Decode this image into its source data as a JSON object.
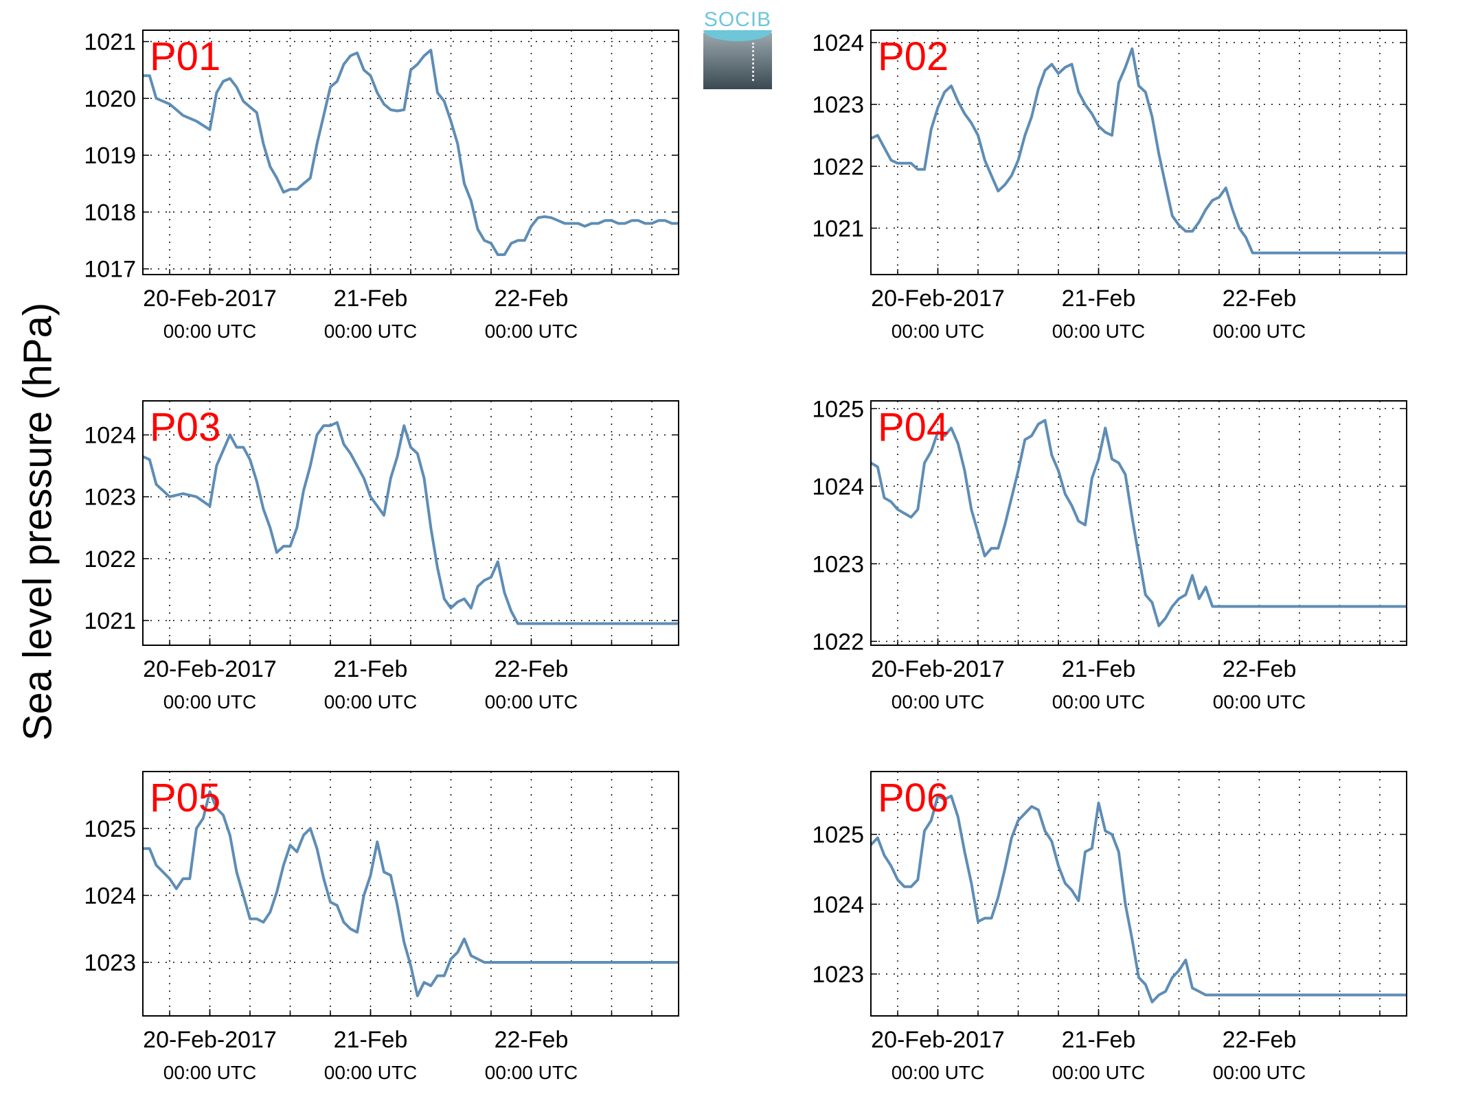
{
  "figure": {
    "ylabel": "Sea level pressure (hPa)",
    "logo_text": "SOCIB",
    "line_color": "#5e8db5",
    "label_color": "#ff0000"
  },
  "chart_data": [
    {
      "type": "line",
      "panel_label": "P01",
      "x_unit": "hours since 20-Feb-2017 00:00 UTC",
      "xlim": [
        -10,
        70
      ],
      "ylim": [
        1016.9,
        1021.2
      ],
      "xticks": [
        {
          "at": 0,
          "label": "20-Feb-2017",
          "sub": "00:00 UTC"
        },
        {
          "at": 24,
          "label": "21-Feb",
          "sub": "00:00 UTC"
        },
        {
          "at": 48,
          "label": "22-Feb",
          "sub": "00:00 UTC"
        }
      ],
      "yticks": [
        1017,
        1018,
        1019,
        1020,
        1021
      ],
      "grid": true,
      "x": [
        -10,
        -9,
        -8,
        -6,
        -4,
        -2,
        0,
        1,
        2,
        3,
        4,
        5,
        6,
        7,
        8,
        9,
        10,
        11,
        12,
        13,
        14,
        15,
        16,
        17,
        18,
        19,
        20,
        21,
        22,
        23,
        24,
        25,
        26,
        27,
        28,
        29,
        30,
        31,
        32,
        33,
        34,
        35,
        36,
        37,
        38,
        39,
        40,
        41,
        42,
        43,
        44,
        45,
        46,
        47,
        48,
        49,
        50,
        51,
        52,
        53,
        54,
        55,
        56,
        57,
        58,
        59,
        60,
        61,
        62,
        63,
        64,
        65,
        66,
        67,
        68,
        69,
        70
      ],
      "y": [
        1020.4,
        1020.4,
        1020.0,
        1019.9,
        1019.7,
        1019.6,
        1019.45,
        1020.1,
        1020.3,
        1020.35,
        1020.2,
        1019.95,
        1019.85,
        1019.75,
        1019.2,
        1018.8,
        1018.6,
        1018.35,
        1018.4,
        1018.4,
        1018.5,
        1018.6,
        1019.2,
        1019.7,
        1020.2,
        1020.3,
        1020.6,
        1020.75,
        1020.8,
        1020.5,
        1020.4,
        1020.1,
        1019.9,
        1019.8,
        1019.78,
        1019.8,
        1020.5,
        1020.6,
        1020.75,
        1020.85,
        1020.1,
        1019.95,
        1019.6,
        1019.2,
        1018.5,
        1018.2,
        1017.7,
        1017.5,
        1017.45,
        1017.25,
        1017.25,
        1017.45,
        1017.5,
        1017.5,
        1017.75,
        1017.9,
        1017.92,
        1017.9,
        1017.85,
        1017.8,
        1017.8,
        1017.8,
        1017.75,
        1017.8,
        1017.8,
        1017.85,
        1017.85,
        1017.8,
        1017.8,
        1017.85,
        1017.85,
        1017.8,
        1017.8,
        1017.85,
        1017.85,
        1017.8,
        1017.8
      ]
    },
    {
      "type": "line",
      "panel_label": "P02",
      "x_unit": "hours since 20-Feb-2017 00:00 UTC",
      "xlim": [
        -10,
        70
      ],
      "ylim": [
        1020.25,
        1024.2
      ],
      "xticks": [
        {
          "at": 0,
          "label": "20-Feb-2017",
          "sub": "00:00 UTC"
        },
        {
          "at": 24,
          "label": "21-Feb",
          "sub": "00:00 UTC"
        },
        {
          "at": 48,
          "label": "22-Feb",
          "sub": "00:00 UTC"
        }
      ],
      "yticks": [
        1021,
        1022,
        1023,
        1024
      ],
      "grid": true,
      "x": [
        -10,
        -9,
        -8,
        -7,
        -6,
        -5,
        -4,
        -3,
        -2,
        -1,
        0,
        1,
        2,
        3,
        4,
        5,
        6,
        7,
        8,
        9,
        10,
        11,
        12,
        13,
        14,
        15,
        16,
        17,
        18,
        19,
        20,
        21,
        22,
        23,
        24,
        25,
        26,
        27,
        28,
        29,
        30,
        31,
        32,
        33,
        34,
        35,
        36,
        37,
        38,
        39,
        40,
        41,
        42,
        43,
        44,
        45,
        46,
        47,
        48,
        49,
        50,
        51,
        52,
        53,
        54,
        55,
        56,
        57,
        58,
        59,
        60,
        61,
        62,
        63,
        64,
        65,
        66,
        67,
        68,
        69,
        70
      ],
      "y": [
        1022.45,
        1022.5,
        1022.3,
        1022.1,
        1022.05,
        1022.05,
        1022.05,
        1021.95,
        1021.95,
        1022.6,
        1022.95,
        1023.2,
        1023.3,
        1023.05,
        1022.85,
        1022.7,
        1022.5,
        1022.1,
        1021.85,
        1021.6,
        1021.7,
        1021.85,
        1022.1,
        1022.5,
        1022.8,
        1023.25,
        1023.55,
        1023.65,
        1023.5,
        1023.6,
        1023.65,
        1023.2,
        1023.0,
        1022.85,
        1022.65,
        1022.55,
        1022.5,
        1023.35,
        1023.6,
        1023.9,
        1023.3,
        1023.2,
        1022.8,
        1022.2,
        1021.7,
        1021.2,
        1021.05,
        1020.95,
        1020.95,
        1021.1,
        1021.3,
        1021.45,
        1021.5,
        1021.65,
        1021.3,
        1021.0,
        1020.85,
        1020.6,
        1020.6,
        1020.6,
        1020.6,
        1020.6,
        1020.6,
        1020.6,
        1020.6,
        1020.6,
        1020.6,
        1020.6,
        1020.6,
        1020.6,
        1020.6,
        1020.6,
        1020.6,
        1020.6,
        1020.6,
        1020.6,
        1020.6,
        1020.6,
        1020.6,
        1020.6,
        1020.6
      ]
    },
    {
      "type": "line",
      "panel_label": "P03",
      "x_unit": "hours since 20-Feb-2017 00:00 UTC",
      "xlim": [
        -10,
        70
      ],
      "ylim": [
        1020.6,
        1024.55
      ],
      "xticks": [
        {
          "at": 0,
          "label": "20-Feb-2017",
          "sub": "00:00 UTC"
        },
        {
          "at": 24,
          "label": "21-Feb",
          "sub": "00:00 UTC"
        },
        {
          "at": 48,
          "label": "22-Feb",
          "sub": "00:00 UTC"
        }
      ],
      "yticks": [
        1021,
        1022,
        1023,
        1024
      ],
      "grid": true,
      "x": [
        -10,
        -9,
        -8,
        -6,
        -4,
        -2,
        0,
        1,
        2,
        3,
        4,
        5,
        6,
        7,
        8,
        9,
        10,
        11,
        12,
        13,
        14,
        15,
        16,
        17,
        18,
        19,
        20,
        21,
        22,
        23,
        24,
        25,
        26,
        27,
        28,
        29,
        30,
        31,
        32,
        33,
        34,
        35,
        36,
        37,
        38,
        39,
        40,
        41,
        42,
        43,
        44,
        45,
        46,
        47,
        48,
        49,
        50,
        51,
        52,
        53,
        54,
        55,
        56,
        57,
        58,
        59,
        60,
        61,
        62,
        63,
        64,
        65,
        66,
        67,
        68,
        69,
        70
      ],
      "y": [
        1023.65,
        1023.6,
        1023.2,
        1023.0,
        1023.05,
        1023.0,
        1022.85,
        1023.5,
        1023.75,
        1024.0,
        1023.8,
        1023.8,
        1023.6,
        1023.25,
        1022.8,
        1022.5,
        1022.1,
        1022.2,
        1022.2,
        1022.5,
        1023.1,
        1023.5,
        1024.0,
        1024.15,
        1024.15,
        1024.2,
        1023.85,
        1023.7,
        1023.5,
        1023.3,
        1023.0,
        1022.85,
        1022.7,
        1023.3,
        1023.65,
        1024.15,
        1023.8,
        1023.7,
        1023.3,
        1022.5,
        1021.85,
        1021.35,
        1021.2,
        1021.3,
        1021.35,
        1021.2,
        1021.55,
        1021.65,
        1021.7,
        1021.95,
        1021.45,
        1021.15,
        1020.95,
        1020.95,
        1020.95,
        1020.95,
        1020.95,
        1020.95,
        1020.95,
        1020.95,
        1020.95,
        1020.95,
        1020.95,
        1020.95,
        1020.95,
        1020.95,
        1020.95,
        1020.95,
        1020.95,
        1020.95,
        1020.95,
        1020.95,
        1020.95,
        1020.95,
        1020.95,
        1020.95,
        1020.95
      ]
    },
    {
      "type": "line",
      "panel_label": "P04",
      "x_unit": "hours since 20-Feb-2017 00:00 UTC",
      "xlim": [
        -10,
        70
      ],
      "ylim": [
        1021.95,
        1025.1
      ],
      "xticks": [
        {
          "at": 0,
          "label": "20-Feb-2017",
          "sub": "00:00 UTC"
        },
        {
          "at": 24,
          "label": "21-Feb",
          "sub": "00:00 UTC"
        },
        {
          "at": 48,
          "label": "22-Feb",
          "sub": "00:00 UTC"
        }
      ],
      "yticks": [
        1022,
        1023,
        1024,
        1025
      ],
      "grid": true,
      "x": [
        -10,
        -9,
        -8,
        -7,
        -6,
        -5,
        -4,
        -3,
        -2,
        -1,
        0,
        1,
        2,
        3,
        4,
        5,
        6,
        7,
        8,
        9,
        10,
        11,
        12,
        13,
        14,
        15,
        16,
        17,
        18,
        19,
        20,
        21,
        22,
        23,
        24,
        25,
        26,
        27,
        28,
        29,
        30,
        31,
        32,
        33,
        34,
        35,
        36,
        37,
        38,
        39,
        40,
        41,
        42,
        43,
        44,
        45,
        46,
        47,
        48,
        49,
        50,
        51,
        52,
        53,
        54,
        55,
        56,
        57,
        58,
        59,
        60,
        61,
        62,
        63,
        64,
        65,
        66,
        67,
        68,
        69,
        70
      ],
      "y": [
        1024.3,
        1024.25,
        1023.85,
        1023.8,
        1023.7,
        1023.65,
        1023.6,
        1023.7,
        1024.3,
        1024.45,
        1024.7,
        1024.65,
        1024.75,
        1024.55,
        1024.2,
        1023.7,
        1023.4,
        1023.1,
        1023.2,
        1023.2,
        1023.5,
        1023.85,
        1024.2,
        1024.6,
        1024.65,
        1024.8,
        1024.85,
        1024.4,
        1024.2,
        1023.9,
        1023.75,
        1023.55,
        1023.5,
        1024.1,
        1024.35,
        1024.75,
        1024.35,
        1024.3,
        1024.15,
        1023.6,
        1023.1,
        1022.6,
        1022.5,
        1022.2,
        1022.3,
        1022.45,
        1022.55,
        1022.6,
        1022.85,
        1022.55,
        1022.7,
        1022.45,
        1022.45,
        1022.45,
        1022.45,
        1022.45,
        1022.45,
        1022.45,
        1022.45,
        1022.45,
        1022.45,
        1022.45,
        1022.45,
        1022.45,
        1022.45,
        1022.45,
        1022.45,
        1022.45,
        1022.45,
        1022.45,
        1022.45,
        1022.45,
        1022.45,
        1022.45,
        1022.45,
        1022.45,
        1022.45,
        1022.45,
        1022.45,
        1022.45,
        1022.45
      ]
    },
    {
      "type": "line",
      "panel_label": "P05",
      "x_unit": "hours since 20-Feb-2017 00:00 UTC",
      "xlim": [
        -10,
        70
      ],
      "ylim": [
        1022.2,
        1025.85
      ],
      "xticks": [
        {
          "at": 0,
          "label": "20-Feb-2017",
          "sub": "00:00 UTC"
        },
        {
          "at": 24,
          "label": "21-Feb",
          "sub": "00:00 UTC"
        },
        {
          "at": 48,
          "label": "22-Feb",
          "sub": "00:00 UTC"
        }
      ],
      "yticks": [
        1023,
        1024,
        1025
      ],
      "grid": true,
      "x": [
        -10,
        -9,
        -8,
        -7,
        -6,
        -5,
        -4,
        -3,
        -2,
        -1,
        0,
        1,
        2,
        3,
        4,
        5,
        6,
        7,
        8,
        9,
        10,
        11,
        12,
        13,
        14,
        15,
        16,
        17,
        18,
        19,
        20,
        21,
        22,
        23,
        24,
        25,
        26,
        27,
        28,
        29,
        30,
        31,
        32,
        33,
        34,
        35,
        36,
        37,
        38,
        39,
        40,
        41,
        42,
        43,
        44,
        45,
        46,
        47,
        48,
        49,
        50,
        51,
        52,
        53,
        54,
        55,
        56,
        57,
        58,
        59,
        60,
        61,
        62,
        63,
        64,
        65,
        66,
        67,
        68,
        69,
        70
      ],
      "y": [
        1024.7,
        1024.7,
        1024.45,
        1024.35,
        1024.25,
        1024.1,
        1024.25,
        1024.25,
        1025.0,
        1025.15,
        1025.55,
        1025.3,
        1025.2,
        1024.9,
        1024.35,
        1024.0,
        1023.65,
        1023.65,
        1023.6,
        1023.75,
        1024.05,
        1024.45,
        1024.75,
        1024.65,
        1024.9,
        1025.0,
        1024.7,
        1024.25,
        1023.9,
        1023.85,
        1023.6,
        1023.5,
        1023.45,
        1024.0,
        1024.3,
        1024.8,
        1024.35,
        1024.3,
        1023.85,
        1023.3,
        1022.95,
        1022.5,
        1022.7,
        1022.65,
        1022.8,
        1022.8,
        1023.05,
        1023.15,
        1023.35,
        1023.1,
        1023.05,
        1023.0,
        1023.0,
        1023.0,
        1023.0,
        1023.0,
        1023.0,
        1023.0,
        1023.0,
        1023.0,
        1023.0,
        1023.0,
        1023.0,
        1023.0,
        1023.0,
        1023.0,
        1023.0,
        1023.0,
        1023.0,
        1023.0,
        1023.0,
        1023.0,
        1023.0,
        1023.0,
        1023.0,
        1023.0,
        1023.0,
        1023.0,
        1023.0,
        1023.0,
        1023.0
      ]
    },
    {
      "type": "line",
      "panel_label": "P06",
      "x_unit": "hours since 20-Feb-2017 00:00 UTC",
      "xlim": [
        -10,
        70
      ],
      "ylim": [
        1022.4,
        1025.9
      ],
      "xticks": [
        {
          "at": 0,
          "label": "20-Feb-2017",
          "sub": "00:00 UTC"
        },
        {
          "at": 24,
          "label": "21-Feb",
          "sub": "00:00 UTC"
        },
        {
          "at": 48,
          "label": "22-Feb",
          "sub": "00:00 UTC"
        }
      ],
      "yticks": [
        1023,
        1024,
        1025
      ],
      "grid": true,
      "x": [
        -10,
        -9,
        -8,
        -7,
        -6,
        -5,
        -4,
        -3,
        -2,
        -1,
        0,
        1,
        2,
        3,
        4,
        5,
        6,
        7,
        8,
        9,
        10,
        11,
        12,
        13,
        14,
        15,
        16,
        17,
        18,
        19,
        20,
        21,
        22,
        23,
        24,
        25,
        26,
        27,
        28,
        29,
        30,
        31,
        32,
        33,
        34,
        35,
        36,
        37,
        38,
        39,
        40,
        41,
        42,
        43,
        44,
        45,
        46,
        47,
        48,
        49,
        50,
        51,
        52,
        53,
        54,
        55,
        56,
        57,
        58,
        59,
        60,
        61,
        62,
        63,
        64,
        65,
        66,
        67,
        68,
        69,
        70
      ],
      "y": [
        1024.85,
        1024.95,
        1024.7,
        1024.55,
        1024.35,
        1024.25,
        1024.25,
        1024.35,
        1025.05,
        1025.2,
        1025.55,
        1025.5,
        1025.55,
        1025.25,
        1024.75,
        1024.3,
        1023.75,
        1023.8,
        1023.8,
        1024.1,
        1024.5,
        1024.95,
        1025.2,
        1025.3,
        1025.4,
        1025.35,
        1025.05,
        1024.9,
        1024.55,
        1024.3,
        1024.2,
        1024.05,
        1024.75,
        1024.8,
        1025.45,
        1025.05,
        1025.0,
        1024.75,
        1024.0,
        1023.5,
        1022.95,
        1022.85,
        1022.6,
        1022.7,
        1022.75,
        1022.95,
        1023.05,
        1023.2,
        1022.8,
        1022.75,
        1022.7,
        1022.7,
        1022.7,
        1022.7,
        1022.7,
        1022.7,
        1022.7,
        1022.7,
        1022.7,
        1022.7,
        1022.7,
        1022.7,
        1022.7,
        1022.7,
        1022.7,
        1022.7,
        1022.7,
        1022.7,
        1022.7,
        1022.7,
        1022.7,
        1022.7,
        1022.7,
        1022.7,
        1022.7,
        1022.7,
        1022.7,
        1022.7,
        1022.7,
        1022.7,
        1022.7
      ]
    }
  ]
}
